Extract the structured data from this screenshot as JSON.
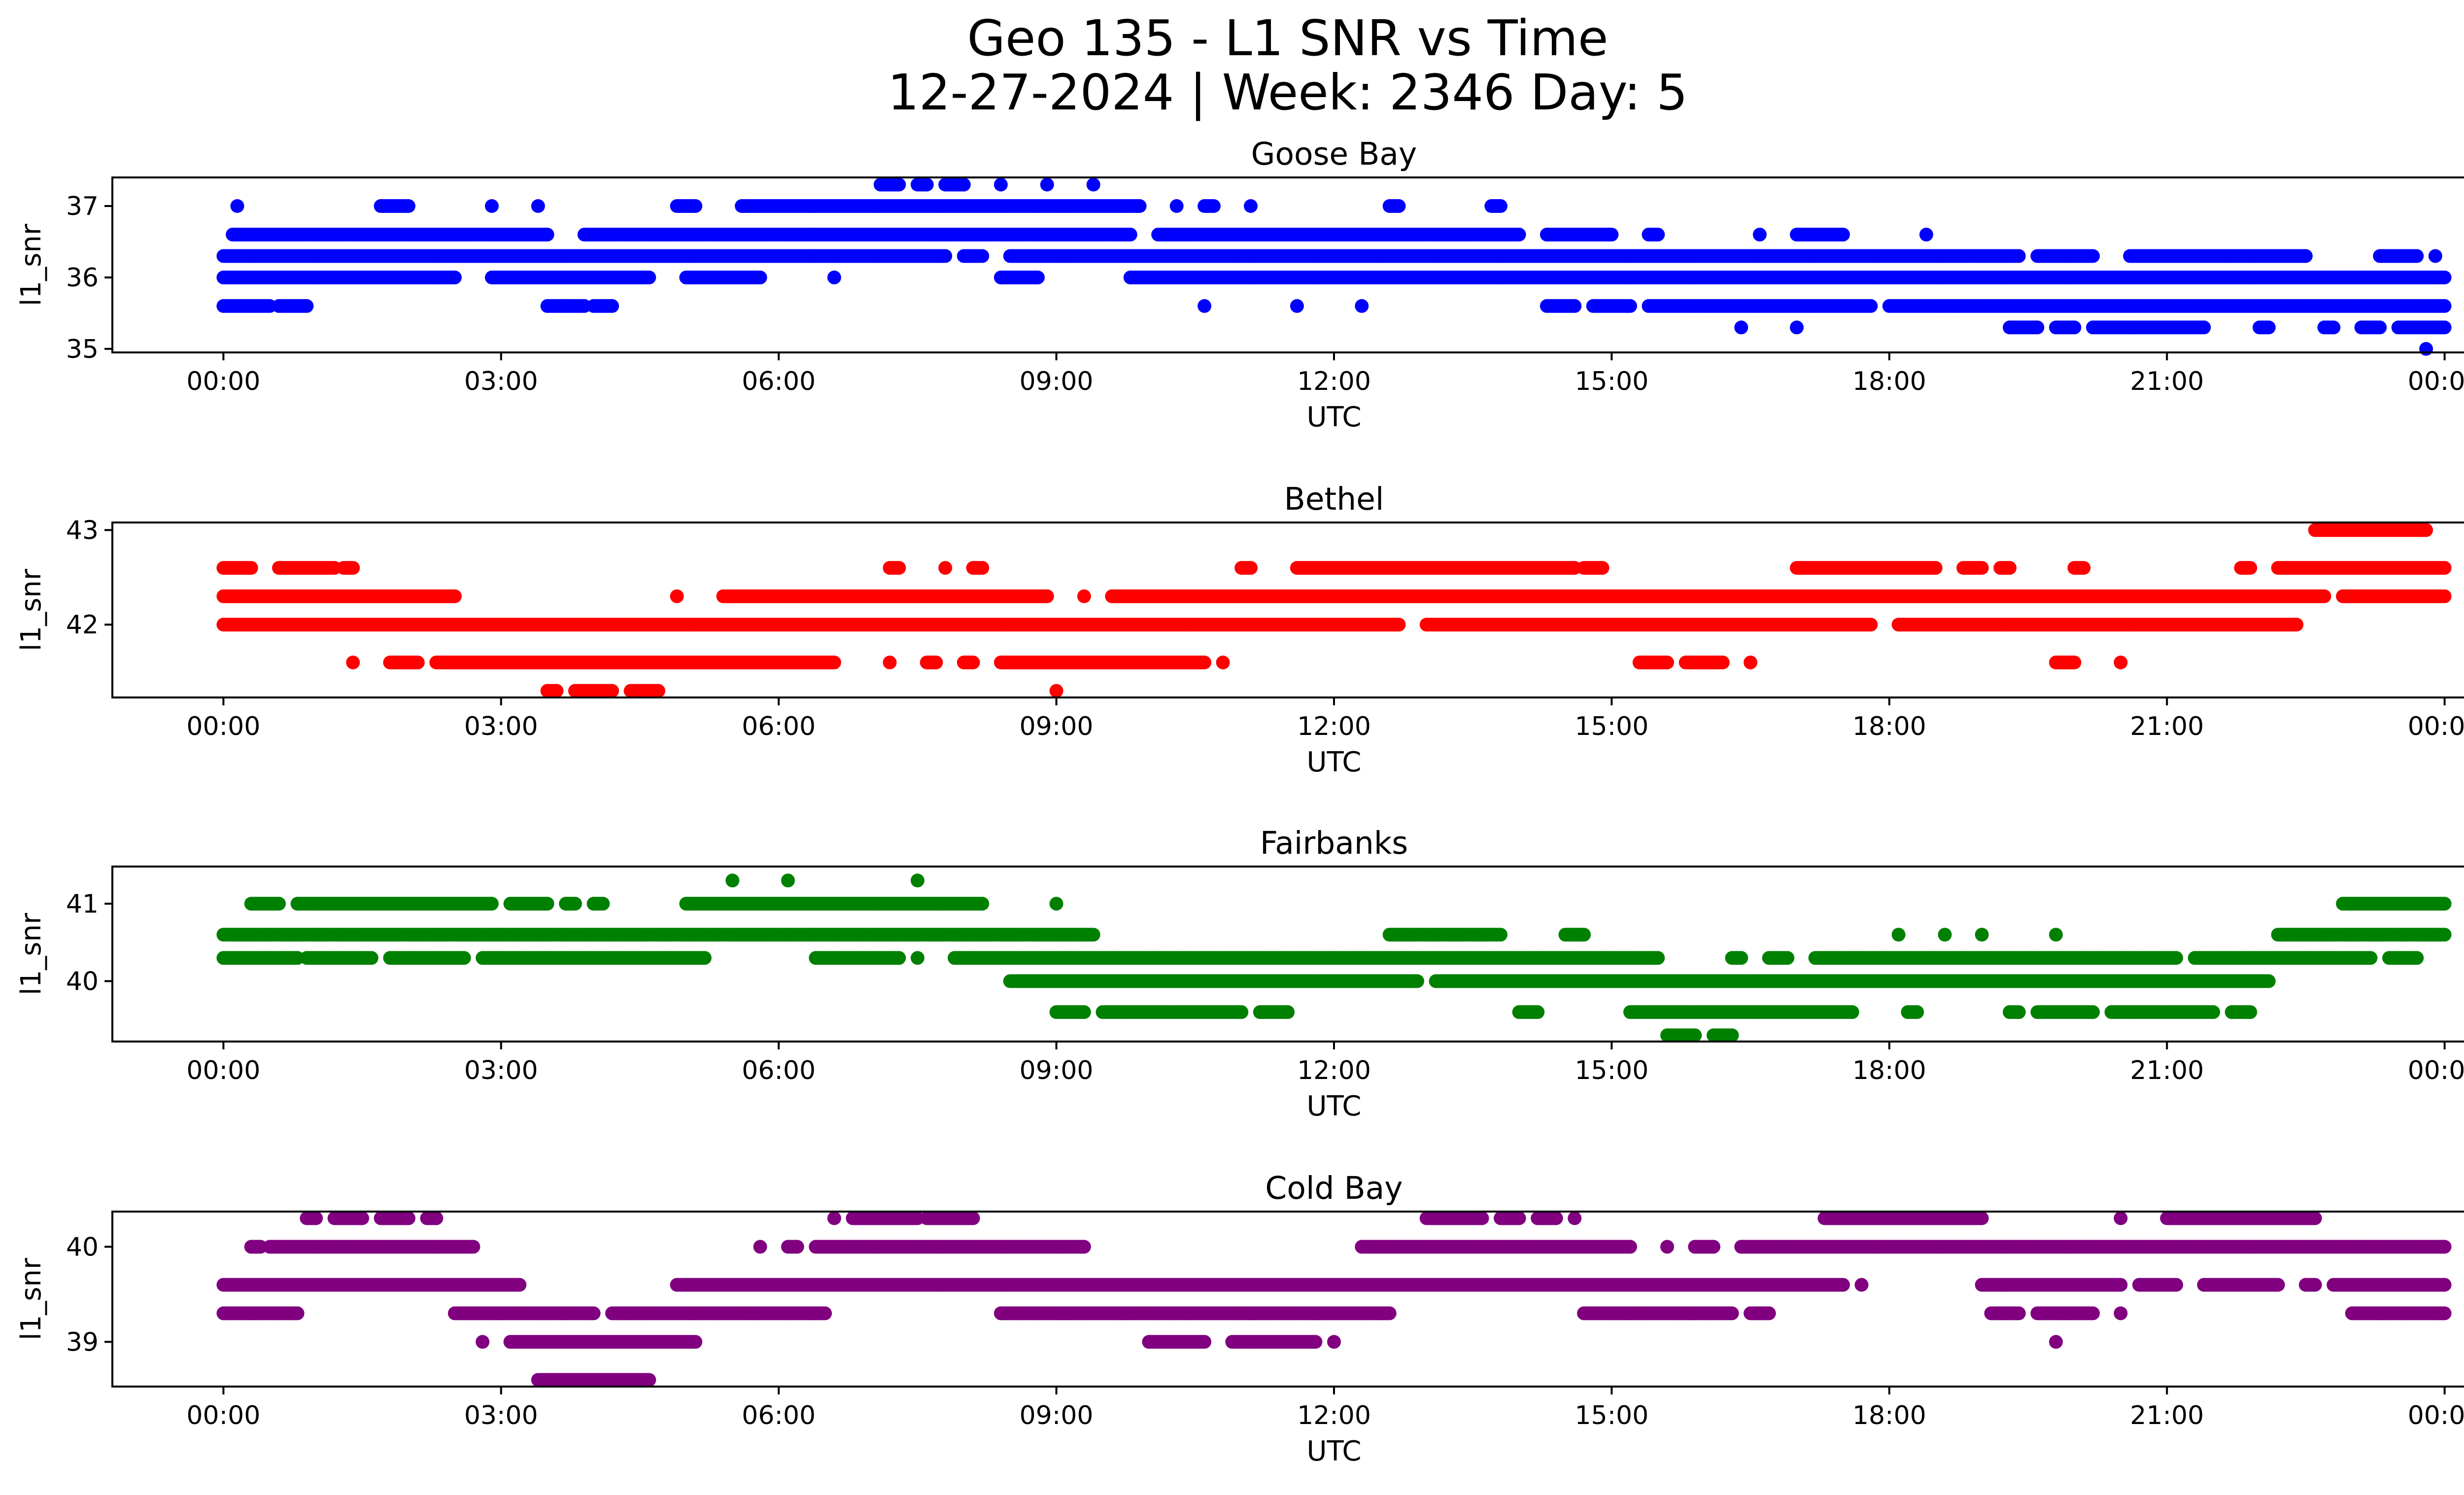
{
  "title_line1": "Geo 135 - L1 SNR vs Time",
  "title_line2": "12-27-2024 | Week: 2346 Day: 5",
  "chart_data": [
    {
      "type": "scatter",
      "title": "Goose Bay",
      "xlabel": "UTC",
      "ylabel": "l1_snr",
      "color": "#0000ff",
      "xlim": [
        -1.2,
        25.2
      ],
      "ylim": [
        34.95,
        37.4
      ],
      "xticks": [
        0,
        3,
        6,
        9,
        12,
        15,
        18,
        21,
        24
      ],
      "xtick_labels": [
        "00:00",
        "03:00",
        "06:00",
        "09:00",
        "12:00",
        "15:00",
        "18:00",
        "21:00",
        "00:00"
      ],
      "yticks": [
        35,
        36,
        37
      ],
      "bands": [
        {
          "y": 36.0,
          "segments": [
            [
              0,
              2.5
            ],
            [
              2.9,
              4.6
            ],
            [
              5.0,
              5.8
            ],
            [
              6.6,
              6.6
            ],
            [
              8.4,
              8.8
            ],
            [
              9.8,
              24.0
            ]
          ]
        },
        {
          "y": 36.3,
          "segments": [
            [
              0,
              7.8
            ],
            [
              8.0,
              8.2
            ],
            [
              8.5,
              19.4
            ],
            [
              19.6,
              20.2
            ],
            [
              20.6,
              22.5
            ],
            [
              23.3,
              23.7
            ],
            [
              23.9,
              23.9
            ]
          ]
        },
        {
          "y": 36.6,
          "segments": [
            [
              0.1,
              3.5
            ],
            [
              3.9,
              9.8
            ],
            [
              10.1,
              14.0
            ],
            [
              14.3,
              15.0
            ],
            [
              15.4,
              15.5
            ],
            [
              16.6,
              16.6
            ],
            [
              17.0,
              17.5
            ],
            [
              18.4,
              18.4
            ]
          ]
        },
        {
          "y": 37.0,
          "segments": [
            [
              0.15,
              0.15
            ],
            [
              1.7,
              2.0
            ],
            [
              2.9,
              2.9
            ],
            [
              3.4,
              3.4
            ],
            [
              4.9,
              5.1
            ],
            [
              5.6,
              9.9
            ],
            [
              10.3,
              10.3
            ],
            [
              10.6,
              10.7
            ],
            [
              11.1,
              11.1
            ],
            [
              12.6,
              12.7
            ],
            [
              13.7,
              13.8
            ]
          ]
        },
        {
          "y": 37.3,
          "segments": [
            [
              7.1,
              7.3
            ],
            [
              7.5,
              7.6
            ],
            [
              7.8,
              8.0
            ],
            [
              8.4,
              8.4
            ],
            [
              8.9,
              8.9
            ],
            [
              9.4,
              9.4
            ]
          ]
        },
        {
          "y": 35.6,
          "segments": [
            [
              0,
              0.5
            ],
            [
              0.6,
              0.9
            ],
            [
              3.5,
              3.9
            ],
            [
              4.0,
              4.2
            ],
            [
              10.6,
              10.6
            ],
            [
              11.6,
              11.6
            ],
            [
              12.3,
              12.3
            ],
            [
              14.3,
              14.6
            ],
            [
              14.8,
              15.2
            ],
            [
              15.4,
              17.8
            ],
            [
              18.0,
              24.0
            ]
          ]
        },
        {
          "y": 35.3,
          "segments": [
            [
              16.4,
              16.4
            ],
            [
              17.0,
              17.0
            ],
            [
              19.3,
              19.6
            ],
            [
              19.8,
              20.0
            ],
            [
              20.2,
              21.4
            ],
            [
              22.0,
              22.1
            ],
            [
              22.7,
              22.8
            ],
            [
              23.1,
              23.3
            ],
            [
              23.5,
              24.0
            ]
          ]
        },
        {
          "y": 35.0,
          "segments": [
            [
              23.8,
              23.8
            ]
          ]
        }
      ]
    },
    {
      "type": "scatter",
      "title": "Bethel",
      "xlabel": "UTC",
      "ylabel": "l1_snr",
      "color": "#ff0000",
      "xlim": [
        -1.2,
        25.2
      ],
      "ylim": [
        41.23,
        43.08
      ],
      "xticks": [
        0,
        3,
        6,
        9,
        12,
        15,
        18,
        21,
        24
      ],
      "xtick_labels": [
        "00:00",
        "03:00",
        "06:00",
        "09:00",
        "12:00",
        "15:00",
        "18:00",
        "21:00",
        "00:00"
      ],
      "yticks": [
        42,
        43
      ],
      "bands": [
        {
          "y": 42.6,
          "segments": [
            [
              0,
              0.3
            ],
            [
              0.6,
              1.2
            ],
            [
              1.3,
              1.4
            ],
            [
              7.2,
              7.3
            ],
            [
              7.8,
              7.8
            ],
            [
              8.1,
              8.2
            ],
            [
              11.0,
              11.1
            ],
            [
              11.6,
              14.6
            ],
            [
              14.7,
              14.9
            ],
            [
              17.0,
              18.5
            ],
            [
              18.8,
              19.0
            ],
            [
              19.2,
              19.3
            ],
            [
              20.0,
              20.1
            ],
            [
              21.8,
              21.9
            ],
            [
              22.2,
              24.0
            ]
          ]
        },
        {
          "y": 42.3,
          "segments": [
            [
              0,
              2.5
            ],
            [
              4.9,
              4.9
            ],
            [
              5.4,
              8.9
            ],
            [
              9.3,
              9.3
            ],
            [
              9.6,
              22.7
            ],
            [
              22.9,
              24.0
            ]
          ]
        },
        {
          "y": 42.0,
          "segments": [
            [
              0,
              12.7
            ],
            [
              13.0,
              17.8
            ],
            [
              18.1,
              22.4
            ]
          ]
        },
        {
          "y": 41.6,
          "segments": [
            [
              1.4,
              1.4
            ],
            [
              1.8,
              2.1
            ],
            [
              2.3,
              6.6
            ],
            [
              7.2,
              7.2
            ],
            [
              7.6,
              7.7
            ],
            [
              8.0,
              8.1
            ],
            [
              8.4,
              10.6
            ],
            [
              10.8,
              10.8
            ],
            [
              15.3,
              15.6
            ],
            [
              15.8,
              16.2
            ],
            [
              16.5,
              16.5
            ],
            [
              19.8,
              20.0
            ],
            [
              20.5,
              20.5
            ]
          ]
        },
        {
          "y": 41.3,
          "segments": [
            [
              3.5,
              3.6
            ],
            [
              3.8,
              4.2
            ],
            [
              4.4,
              4.7
            ],
            [
              9.0,
              9.0
            ]
          ]
        },
        {
          "y": 43.0,
          "segments": [
            [
              22.6,
              23.8
            ]
          ]
        }
      ]
    },
    {
      "type": "scatter",
      "title": "Fairbanks",
      "xlabel": "UTC",
      "ylabel": "l1_snr",
      "color": "#008000",
      "xlim": [
        -1.2,
        25.2
      ],
      "ylim": [
        39.22,
        41.48
      ],
      "xticks": [
        0,
        3,
        6,
        9,
        12,
        15,
        18,
        21,
        24
      ],
      "xtick_labels": [
        "00:00",
        "03:00",
        "06:00",
        "09:00",
        "12:00",
        "15:00",
        "18:00",
        "21:00",
        "00:00"
      ],
      "yticks": [
        40,
        41
      ],
      "bands": [
        {
          "y": 41.0,
          "segments": [
            [
              0.3,
              0.6
            ],
            [
              0.8,
              2.9
            ],
            [
              3.1,
              3.5
            ],
            [
              3.7,
              3.8
            ],
            [
              4.0,
              4.1
            ],
            [
              5.0,
              8.2
            ],
            [
              9.0,
              9.0
            ],
            [
              22.9,
              24.0
            ]
          ]
        },
        {
          "y": 40.6,
          "segments": [
            [
              0,
              9.4
            ],
            [
              12.6,
              13.8
            ],
            [
              14.5,
              14.7
            ],
            [
              18.1,
              18.1
            ],
            [
              18.6,
              18.6
            ],
            [
              19.0,
              19.0
            ],
            [
              19.8,
              19.8
            ],
            [
              22.2,
              24.0
            ]
          ]
        },
        {
          "y": 40.3,
          "segments": [
            [
              0,
              0.8
            ],
            [
              0.9,
              1.6
            ],
            [
              1.8,
              2.6
            ],
            [
              2.8,
              5.2
            ],
            [
              6.4,
              7.3
            ],
            [
              7.5,
              7.5
            ],
            [
              7.9,
              15.5
            ],
            [
              16.3,
              16.4
            ],
            [
              16.7,
              16.9
            ],
            [
              17.2,
              21.1
            ],
            [
              21.3,
              23.2
            ],
            [
              23.4,
              23.7
            ]
          ]
        },
        {
          "y": 40.0,
          "segments": [
            [
              8.5,
              12.9
            ],
            [
              13.1,
              22.1
            ]
          ]
        },
        {
          "y": 39.6,
          "segments": [
            [
              9.0,
              9.3
            ],
            [
              9.5,
              11.0
            ],
            [
              11.2,
              11.5
            ],
            [
              14.0,
              14.2
            ],
            [
              15.2,
              17.6
            ],
            [
              18.2,
              18.3
            ],
            [
              19.3,
              19.4
            ],
            [
              19.6,
              20.2
            ],
            [
              20.4,
              21.5
            ],
            [
              21.7,
              21.9
            ]
          ]
        },
        {
          "y": 39.3,
          "segments": [
            [
              15.6,
              15.9
            ],
            [
              16.1,
              16.3
            ]
          ]
        },
        {
          "y": 41.3,
          "segments": [
            [
              5.5,
              5.5
            ],
            [
              6.1,
              6.1
            ],
            [
              7.5,
              7.5
            ]
          ]
        }
      ]
    },
    {
      "type": "scatter",
      "title": "Cold Bay",
      "xlabel": "UTC",
      "ylabel": "l1_snr",
      "color": "#800080",
      "xlim": [
        -1.2,
        25.2
      ],
      "ylim": [
        38.53,
        40.37
      ],
      "xticks": [
        0,
        3,
        6,
        9,
        12,
        15,
        18,
        21,
        24
      ],
      "xtick_labels": [
        "00:00",
        "03:00",
        "06:00",
        "09:00",
        "12:00",
        "15:00",
        "18:00",
        "21:00",
        "00:00"
      ],
      "yticks": [
        39,
        40
      ],
      "bands": [
        {
          "y": 40.3,
          "segments": [
            [
              0.9,
              1.0
            ],
            [
              1.2,
              1.5
            ],
            [
              1.7,
              2.0
            ],
            [
              2.2,
              2.3
            ],
            [
              6.6,
              6.6
            ],
            [
              6.8,
              7.5
            ],
            [
              7.6,
              8.1
            ],
            [
              13.0,
              13.6
            ],
            [
              13.8,
              14.0
            ],
            [
              14.2,
              14.4
            ],
            [
              14.6,
              14.6
            ],
            [
              17.3,
              19.0
            ],
            [
              20.5,
              20.5
            ],
            [
              21.0,
              22.6
            ]
          ]
        },
        {
          "y": 40.0,
          "segments": [
            [
              0.3,
              0.4
            ],
            [
              0.5,
              2.7
            ],
            [
              5.8,
              5.8
            ],
            [
              6.1,
              6.2
            ],
            [
              6.4,
              9.3
            ],
            [
              12.3,
              15.2
            ],
            [
              15.6,
              15.6
            ],
            [
              15.9,
              16.1
            ],
            [
              16.4,
              24.0
            ]
          ]
        },
        {
          "y": 39.6,
          "segments": [
            [
              0,
              3.2
            ],
            [
              4.9,
              17.5
            ],
            [
              17.7,
              17.7
            ],
            [
              19.0,
              20.5
            ],
            [
              20.7,
              21.1
            ],
            [
              21.4,
              22.2
            ],
            [
              22.5,
              22.6
            ],
            [
              22.8,
              24.0
            ]
          ]
        },
        {
          "y": 39.3,
          "segments": [
            [
              0,
              0.8
            ],
            [
              2.5,
              4.0
            ],
            [
              4.2,
              6.5
            ],
            [
              8.4,
              12.6
            ],
            [
              14.7,
              16.3
            ],
            [
              16.5,
              16.7
            ],
            [
              19.1,
              19.4
            ],
            [
              19.6,
              20.2
            ],
            [
              20.5,
              20.5
            ],
            [
              23.0,
              24.0
            ]
          ]
        },
        {
          "y": 39.0,
          "segments": [
            [
              2.8,
              2.8
            ],
            [
              3.1,
              5.1
            ],
            [
              10.0,
              10.6
            ],
            [
              10.9,
              11.8
            ],
            [
              12.0,
              12.0
            ],
            [
              19.8,
              19.8
            ]
          ]
        },
        {
          "y": 38.6,
          "segments": [
            [
              3.4,
              4.6
            ]
          ]
        }
      ]
    }
  ]
}
